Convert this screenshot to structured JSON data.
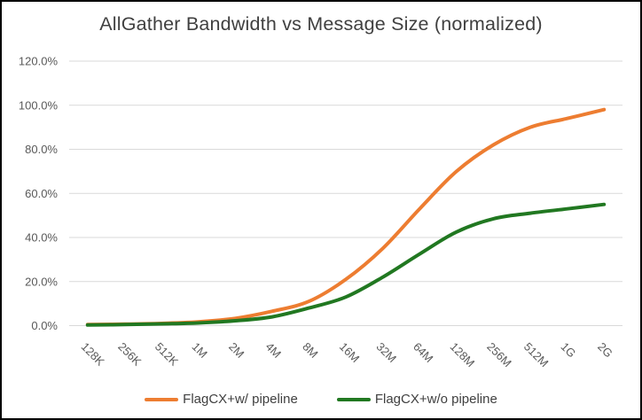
{
  "title": "AllGather Bandwidth vs Message Size (normalized)",
  "colors": {
    "series_orange": "#ED7D31",
    "series_green": "#217821",
    "gridline": "#D9D9D9",
    "axis_label": "#595959",
    "title_text": "#404040",
    "background": "#FFFFFF",
    "border": "#000000"
  },
  "chart_data": {
    "type": "line",
    "title": "AllGather Bandwidth vs Message Size (normalized)",
    "categories": [
      "128K",
      "256K",
      "512K",
      "1M",
      "2M",
      "4M",
      "8M",
      "16M",
      "32M",
      "64M",
      "128M",
      "256M",
      "512M",
      "1G",
      "2G"
    ],
    "series": [
      {
        "name": "FlagCX+w/ pipeline",
        "color": "#ED7D31",
        "values": [
          0.5,
          0.7,
          1.0,
          1.7,
          3.3,
          6.5,
          11,
          21,
          35,
          53,
          70,
          82,
          90,
          94,
          98
        ]
      },
      {
        "name": "FlagCX+w/o pipeline",
        "color": "#217821",
        "values": [
          0.3,
          0.5,
          0.8,
          1.2,
          2.2,
          4,
          8,
          13,
          22,
          32.5,
          42.5,
          48.5,
          51,
          53,
          55
        ]
      }
    ],
    "xlabel": "",
    "ylabel": "",
    "ylim": [
      0,
      120
    ],
    "ytick_step": 20,
    "ytick_labels": [
      "0.0%",
      "20.0%",
      "40.0%",
      "60.0%",
      "80.0%",
      "100.0%",
      "120.0%"
    ],
    "grid": true,
    "smoothed_lines": true,
    "legend_position": "bottom"
  }
}
